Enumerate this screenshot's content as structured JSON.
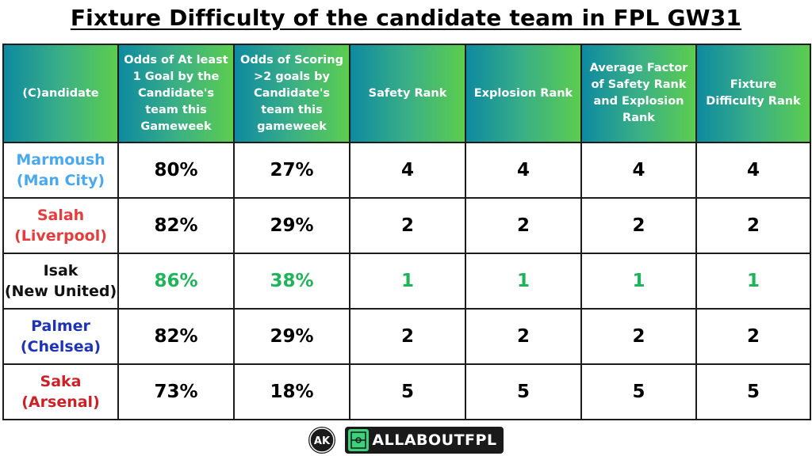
{
  "title": "Fixture Difficulty of the candidate team in FPL GW31",
  "colors": {
    "header_gradient_start": "#0e8aa0",
    "header_gradient_end": "#5ccd4e",
    "best_value": "#1fb45a"
  },
  "headers": [
    "(C)andidate",
    "Odds of At least 1 Goal by the Candidate's team this Gameweek",
    "Odds of Scoring >2 goals by Candidate's team this gameweek",
    "Safety Rank",
    "Explosion Rank",
    "Average Factor of Safety Rank and Explosion Rank",
    "Fixture Difficulty Rank"
  ],
  "rows": [
    {
      "name": "Marmoush",
      "team": "(Man City)",
      "name_color": "#4aa9ee",
      "cells": [
        "80%",
        "27%",
        "4",
        "4",
        "4",
        "4"
      ],
      "highlight": false
    },
    {
      "name": "Salah",
      "team": "(Liverpool)",
      "name_color": "#e43d3d",
      "cells": [
        "82%",
        "29%",
        "2",
        "2",
        "2",
        "2"
      ],
      "highlight": false
    },
    {
      "name": "Isak",
      "team": "(New United)",
      "name_color": "#111111",
      "cells": [
        "86%",
        "38%",
        "1",
        "1",
        "1",
        "1"
      ],
      "highlight": true
    },
    {
      "name": "Palmer",
      "team": "(Chelsea)",
      "name_color": "#1f34b4",
      "cells": [
        "82%",
        "29%",
        "2",
        "2",
        "2",
        "2"
      ],
      "highlight": false
    },
    {
      "name": "Saka",
      "team": "(Arsenal)",
      "name_color": "#cc2227",
      "cells": [
        "73%",
        "18%",
        "5",
        "5",
        "5",
        "5"
      ],
      "highlight": false
    }
  ],
  "footer": {
    "logo_icon": "ak-monogram-icon",
    "brand_icon": "football-pitch-icon",
    "brand_text": "ALLABOUTFPL"
  }
}
